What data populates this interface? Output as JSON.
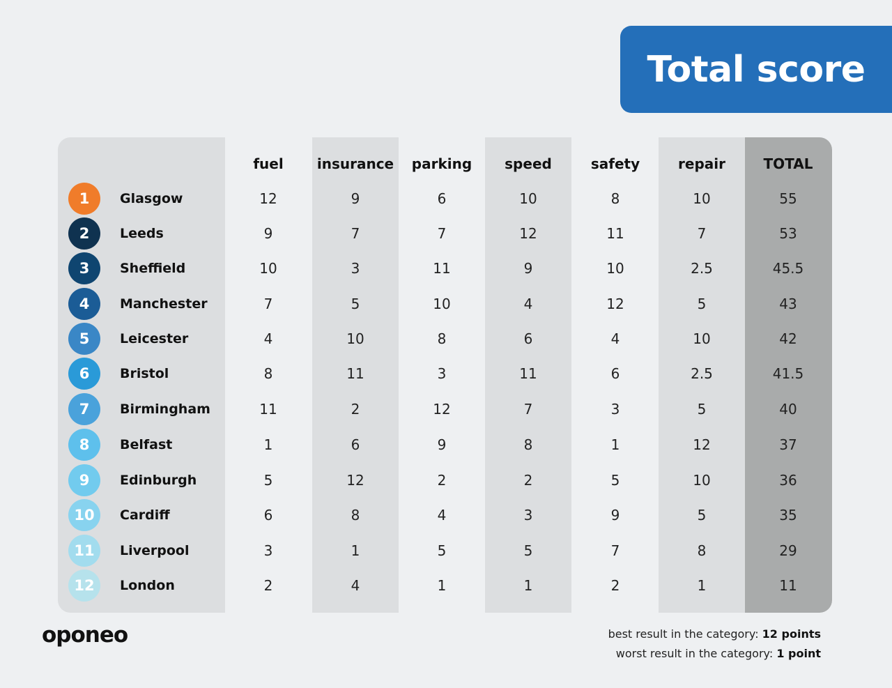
{
  "title": "Total score",
  "brand": "oponeo",
  "legend": {
    "best_label": "best result in the category:",
    "best_value": "12 points",
    "worst_label": "worst result in the category:",
    "worst_value": "1 point"
  },
  "colors": {
    "title_bg": "#246fb9",
    "background": "#eef0f2",
    "column_band": "#dcdee0",
    "total_band": "#a9abab",
    "rank_colors": [
      "#f07c2a",
      "#0f3250",
      "#0f4570",
      "#1b5c96",
      "#3a87c6",
      "#2a9ad8",
      "#4aa2db",
      "#5ec0ec",
      "#72cbee",
      "#88d3ef",
      "#a2dcee",
      "#b6e2ec"
    ]
  },
  "chart_data": {
    "type": "table",
    "title": "Total score",
    "columns": [
      "fuel",
      "insurance",
      "parking",
      "speed",
      "safety",
      "repair",
      "TOTAL"
    ],
    "rows": [
      {
        "rank": "1",
        "city": "Glasgow",
        "values": [
          "12",
          "9",
          "6",
          "10",
          "8",
          "10",
          "55"
        ]
      },
      {
        "rank": "2",
        "city": "Leeds",
        "values": [
          "9",
          "7",
          "7",
          "12",
          "11",
          "7",
          "53"
        ]
      },
      {
        "rank": "3",
        "city": "Sheffield",
        "values": [
          "10",
          "3",
          "11",
          "9",
          "10",
          "2.5",
          "45.5"
        ]
      },
      {
        "rank": "4",
        "city": "Manchester",
        "values": [
          "7",
          "5",
          "10",
          "4",
          "12",
          "5",
          "43"
        ]
      },
      {
        "rank": "5",
        "city": "Leicester",
        "values": [
          "4",
          "10",
          "8",
          "6",
          "4",
          "10",
          "42"
        ]
      },
      {
        "rank": "6",
        "city": "Bristol",
        "values": [
          "8",
          "11",
          "3",
          "11",
          "6",
          "2.5",
          "41.5"
        ]
      },
      {
        "rank": "7",
        "city": "Birmingham",
        "values": [
          "11",
          "2",
          "12",
          "7",
          "3",
          "5",
          "40"
        ]
      },
      {
        "rank": "8",
        "city": "Belfast",
        "values": [
          "1",
          "6",
          "9",
          "8",
          "1",
          "12",
          "37"
        ]
      },
      {
        "rank": "9",
        "city": "Edinburgh",
        "values": [
          "5",
          "12",
          "2",
          "2",
          "5",
          "10",
          "36"
        ]
      },
      {
        "rank": "10",
        "city": "Cardiff",
        "values": [
          "6",
          "8",
          "4",
          "3",
          "9",
          "5",
          "35"
        ]
      },
      {
        "rank": "11",
        "city": "Liverpool",
        "values": [
          "3",
          "1",
          "5",
          "5",
          "7",
          "8",
          "29"
        ]
      },
      {
        "rank": "12",
        "city": "London",
        "values": [
          "2",
          "4",
          "1",
          "1",
          "2",
          "1",
          "11"
        ]
      }
    ]
  }
}
